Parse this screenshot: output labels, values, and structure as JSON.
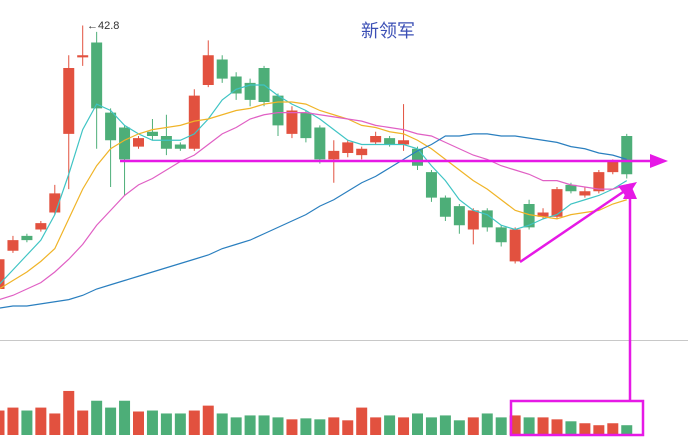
{
  "chart_data": {
    "type": "candlestick",
    "title": "新领军",
    "annotation": "←42.8",
    "up_color": "#e2513f",
    "down_color": "#4dae78",
    "ylim": [
      28,
      44
    ],
    "open": [
      30.4,
      32.2,
      32.9,
      33.2,
      34.0,
      37.7,
      41.3,
      42.0,
      38.7,
      38.0,
      37.1,
      37.8,
      37.6,
      37.2,
      37.0,
      40.0,
      41.2,
      40.4,
      40.1,
      40.8,
      39.5,
      37.7,
      38.7,
      38.0,
      36.5,
      36.8,
      36.7,
      37.3,
      37.5,
      37.2,
      37.0,
      35.9,
      34.7,
      34.3,
      33.2,
      34.1,
      33.3,
      31.7,
      34.4,
      33.8,
      33.8,
      35.3,
      34.8,
      35.0,
      35.9,
      37.6
    ],
    "high": [
      32.0,
      32.9,
      33.0,
      33.6,
      35.3,
      41.4,
      42.8,
      42.5,
      38.9,
      38.1,
      37.6,
      38.4,
      38.6,
      37.3,
      39.8,
      42.1,
      41.4,
      40.6,
      40.3,
      40.9,
      39.6,
      39.0,
      38.8,
      38.1,
      37.4,
      37.4,
      37.1,
      37.8,
      37.6,
      39.1,
      37.1,
      36.0,
      34.8,
      34.4,
      34.2,
      34.2,
      33.4,
      33.3,
      34.6,
      34.2,
      35.2,
      35.4,
      35.2,
      36.0,
      36.5,
      37.7
    ],
    "low": [
      30.1,
      32.1,
      32.6,
      33.1,
      33.9,
      35.1,
      40.9,
      37.0,
      35.2,
      34.8,
      37.0,
      37.4,
      36.7,
      36.9,
      36.9,
      39.9,
      40.1,
      39.3,
      39.0,
      39.0,
      37.6,
      37.5,
      37.3,
      36.3,
      35.4,
      36.6,
      36.5,
      37.2,
      37.1,
      36.9,
      36.0,
      34.5,
      33.6,
      33.0,
      32.5,
      33.1,
      32.4,
      31.6,
      33.2,
      33.7,
      33.7,
      34.9,
      34.7,
      34.9,
      35.8,
      35.6
    ],
    "close": [
      31.8,
      32.7,
      32.7,
      33.5,
      34.9,
      40.8,
      41.4,
      38.9,
      37.4,
      36.5,
      37.5,
      37.6,
      37.0,
      37.0,
      39.5,
      41.4,
      40.3,
      39.6,
      39.3,
      39.2,
      38.1,
      38.8,
      37.5,
      36.5,
      36.9,
      37.3,
      37.0,
      37.6,
      37.2,
      37.4,
      36.2,
      34.7,
      33.8,
      33.4,
      34.1,
      33.3,
      32.6,
      33.2,
      33.3,
      34.0,
      35.1,
      35.0,
      35.0,
      35.9,
      36.4,
      35.8
    ],
    "series": [
      {
        "color": "#3fc4c4",
        "values": [
          30.6,
          31.3,
          32.0,
          32.7,
          33.9,
          35.8,
          37.9,
          39.1,
          38.8,
          38.1,
          37.7,
          37.4,
          37.4,
          37.4,
          37.7,
          38.4,
          39.3,
          39.8,
          40.0,
          40.0,
          39.5,
          39.1,
          38.8,
          38.4,
          37.9,
          37.4,
          37.2,
          37.2,
          37.2,
          37.2,
          37.0,
          36.2,
          35.5,
          34.6,
          34.1,
          33.9,
          33.4,
          33.2,
          33.4,
          33.7,
          33.9,
          34.4,
          34.6,
          34.8,
          35.1,
          35.5
        ]
      },
      {
        "color": "#f0b428",
        "values": [
          30.4,
          30.8,
          31.2,
          31.7,
          32.3,
          33.7,
          35.1,
          36.2,
          37.0,
          37.4,
          37.7,
          37.9,
          38.0,
          38.1,
          38.3,
          38.4,
          38.6,
          38.8,
          38.9,
          39.1,
          39.2,
          39.2,
          39.1,
          38.8,
          38.6,
          38.4,
          38.1,
          38.0,
          37.8,
          37.7,
          37.4,
          37.0,
          36.5,
          36.0,
          35.5,
          35.1,
          34.6,
          34.1,
          33.9,
          33.8,
          33.7,
          33.9,
          34.0,
          34.1,
          34.4,
          34.6
        ]
      },
      {
        "color": "#e060c4",
        "values": [
          29.9,
          30.1,
          30.4,
          30.7,
          31.2,
          31.8,
          32.5,
          33.4,
          34.1,
          34.8,
          35.3,
          35.6,
          36.0,
          36.4,
          36.7,
          37.2,
          37.7,
          38.0,
          38.4,
          38.6,
          38.7,
          38.7,
          38.7,
          38.6,
          38.5,
          38.4,
          38.3,
          38.1,
          38.0,
          37.9,
          37.7,
          37.6,
          37.3,
          37.0,
          36.7,
          36.5,
          36.2,
          36.0,
          35.8,
          35.5,
          35.5,
          35.3,
          35.2,
          35.1,
          35.1,
          35.3
        ]
      },
      {
        "color": "#2a7fbf",
        "values": [
          29.5,
          29.6,
          29.6,
          29.7,
          29.8,
          29.9,
          30.1,
          30.4,
          30.6,
          30.8,
          31.0,
          31.2,
          31.4,
          31.6,
          31.8,
          32.0,
          32.3,
          32.5,
          32.7,
          33.0,
          33.3,
          33.6,
          33.9,
          34.3,
          34.6,
          35.0,
          35.4,
          35.7,
          36.1,
          36.5,
          36.9,
          37.2,
          37.6,
          37.6,
          37.7,
          37.7,
          37.6,
          37.6,
          37.5,
          37.4,
          37.3,
          37.1,
          37.0,
          36.8,
          36.7,
          36.5
        ]
      }
    ],
    "volume": [
      25,
      28,
      25,
      28,
      22,
      45,
      25,
      35,
      28,
      35,
      24,
      25,
      22,
      22,
      25,
      30,
      22,
      18,
      20,
      20,
      18,
      16,
      17,
      16,
      18,
      15,
      28,
      18,
      20,
      18,
      22,
      18,
      20,
      15,
      18,
      22,
      18,
      20,
      18,
      18,
      16,
      14,
      12,
      10,
      12,
      10
    ],
    "vlim": [
      0,
      95
    ]
  }
}
